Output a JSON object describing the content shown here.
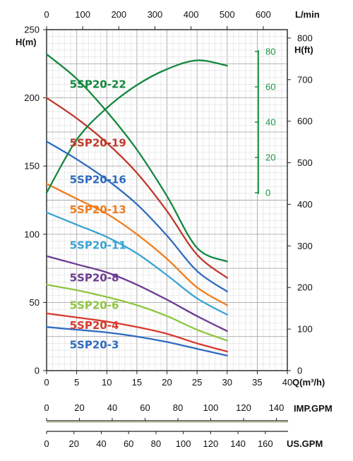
{
  "chart_data": {
    "type": "line",
    "x_axis_bottom": {
      "label": "Q(m³/h)",
      "range": [
        0,
        40
      ],
      "ticks": [
        0,
        5,
        10,
        15,
        20,
        25,
        30,
        35,
        40
      ]
    },
    "x_axis_top": {
      "label": "L/min",
      "range": [
        0,
        666.7
      ],
      "ticks": [
        0,
        100,
        200,
        300,
        400,
        500,
        600
      ]
    },
    "y_axis_left": {
      "label": "H(m)",
      "range": [
        0,
        250
      ],
      "ticks": [
        0,
        50,
        100,
        150,
        200,
        250
      ]
    },
    "y_axis_right": {
      "label": "H(ft)",
      "range": [
        0,
        820.2
      ],
      "ticks": [
        0,
        100,
        200,
        300,
        400,
        500,
        600,
        700,
        800
      ]
    },
    "efficiency_axis": {
      "ticks": [
        0,
        20,
        40,
        60,
        80
      ],
      "range": [
        0,
        80
      ],
      "color": "#1a9640"
    },
    "imp_gpm_axis": {
      "label": "IMP.GPM",
      "ticks": [
        0,
        20,
        40,
        60,
        80,
        100,
        120,
        140
      ]
    },
    "us_gpm_axis": {
      "label": "US.GPM",
      "ticks": [
        0,
        20,
        40,
        60,
        80,
        100,
        120,
        140,
        160
      ]
    },
    "grid": true,
    "series": [
      {
        "name": "5SP20-22",
        "color": "#13873e",
        "label_at": [
          5,
          210
        ],
        "x": [
          0,
          5,
          10,
          15,
          20,
          25,
          30
        ],
        "y": [
          232,
          214,
          190,
          162,
          128,
          90,
          80
        ]
      },
      {
        "name": "5SP20-19",
        "color": "#c0392b",
        "label_at": [
          5,
          167
        ],
        "x": [
          0,
          5,
          10,
          15,
          20,
          25,
          30
        ],
        "y": [
          200,
          185,
          167,
          145,
          117,
          85,
          68
        ]
      },
      {
        "name": "5SP20-16",
        "color": "#2e6bbf",
        "label_at": [
          5,
          140
        ],
        "x": [
          0,
          5,
          10,
          15,
          20,
          25,
          30
        ],
        "y": [
          168,
          155,
          140,
          122,
          99,
          73,
          58
        ]
      },
      {
        "name": "5SP20-13",
        "color": "#f07c1a",
        "label_at": [
          5,
          118
        ],
        "x": [
          0,
          5,
          10,
          15,
          20,
          25,
          30
        ],
        "y": [
          137,
          126,
          115,
          100,
          82,
          61,
          48
        ]
      },
      {
        "name": "5SP20-11",
        "color": "#3aa3d4",
        "label_at": [
          5,
          92
        ],
        "x": [
          0,
          5,
          10,
          15,
          20,
          25,
          30
        ],
        "y": [
          116,
          107,
          98,
          86,
          70,
          53,
          41
        ]
      },
      {
        "name": "5SP20-8",
        "color": "#6b3c93",
        "label_at": [
          5,
          68
        ],
        "x": [
          0,
          5,
          10,
          15,
          20,
          25,
          30
        ],
        "y": [
          84,
          78,
          72,
          63,
          52,
          40,
          29
        ]
      },
      {
        "name": "5SP20-6",
        "color": "#8dc63f",
        "label_at": [
          5,
          48
        ],
        "x": [
          0,
          5,
          10,
          15,
          20,
          25,
          30
        ],
        "y": [
          63,
          59,
          54,
          48,
          40,
          30,
          22
        ]
      },
      {
        "name": "5SP20-4",
        "color": "#d93a2e",
        "label_at": [
          5,
          33
        ],
        "x": [
          0,
          5,
          10,
          15,
          20,
          25,
          30
        ],
        "y": [
          42,
          39,
          36,
          32,
          27,
          20,
          14
        ]
      },
      {
        "name": "5SP20-3",
        "color": "#2e6bbf",
        "label_at": [
          5,
          19
        ],
        "x": [
          0,
          5,
          10,
          15,
          20,
          25,
          30
        ],
        "y": [
          32,
          30,
          28,
          25,
          21,
          16,
          11
        ]
      }
    ],
    "efficiency_curve": {
      "color": "#13873e",
      "x": [
        0,
        5,
        10,
        15,
        20,
        25,
        30
      ],
      "y": [
        0,
        30,
        48,
        61,
        70,
        75,
        72
      ]
    }
  }
}
